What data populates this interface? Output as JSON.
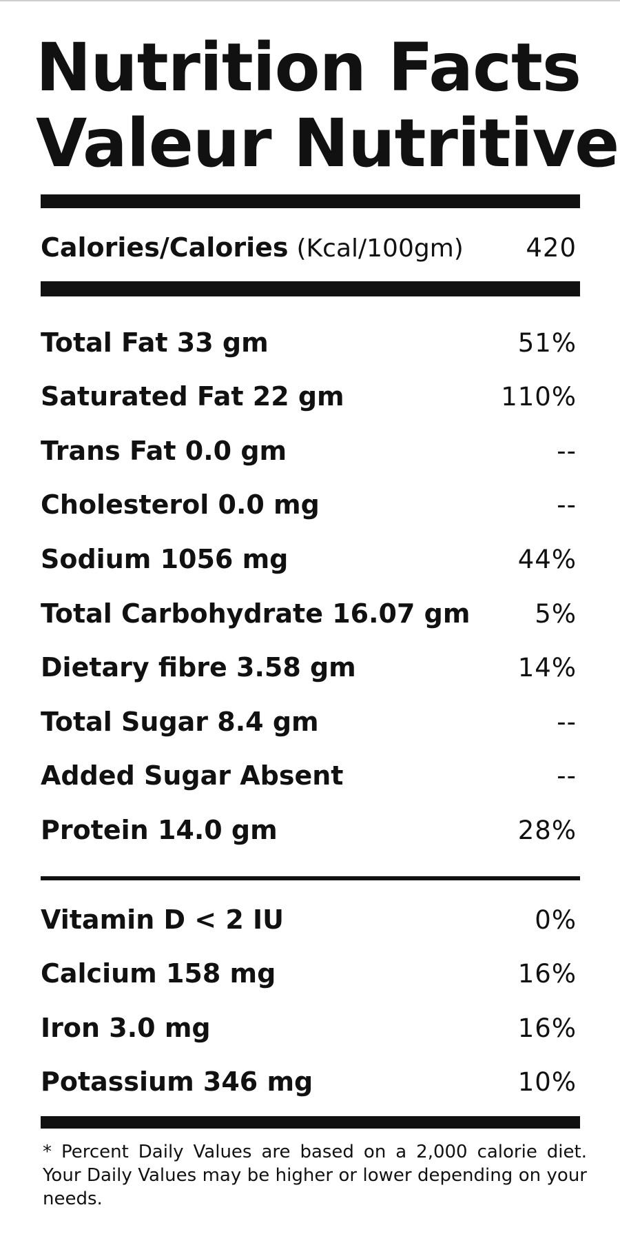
{
  "title": {
    "english": "Nutrition Facts",
    "french": "Valeur Nutritive"
  },
  "calories": {
    "label": "Calories/Calories",
    "unit": "(Kcal/100gm)",
    "value": "420"
  },
  "nutrients": [
    {
      "label": "Total Fat 33 gm",
      "daily_value": "51%"
    },
    {
      "label": "Saturated Fat 22 gm",
      "daily_value": "110%"
    },
    {
      "label": "Trans Fat 0.0 gm",
      "daily_value": "--"
    },
    {
      "label": "Cholesterol 0.0 mg",
      "daily_value": "--"
    },
    {
      "label": "Sodium 1056 mg",
      "daily_value": "44%"
    },
    {
      "label": "Total Carbohydrate 16.07 gm",
      "daily_value": "5%"
    },
    {
      "label": "Dietary fibre 3.58 gm",
      "daily_value": "14%"
    },
    {
      "label": "Total Sugar 8.4 gm",
      "daily_value": "--"
    },
    {
      "label": "Added Sugar Absent",
      "daily_value": "--"
    },
    {
      "label": "Protein 14.0 gm",
      "daily_value": "28%"
    }
  ],
  "vitamins_minerals": [
    {
      "label": "Vitamin D < 2 IU",
      "daily_value": "0%"
    },
    {
      "label": "Calcium 158 mg",
      "daily_value": "16%"
    },
    {
      "label": "Iron 3.0 mg",
      "daily_value": "16%"
    },
    {
      "label": "Potassium 346 mg",
      "daily_value": "10%"
    }
  ],
  "footnote": "* Percent Daily Values are based on a 2,000 calorie diet. Your Daily Values may be higher or lower depending on your needs."
}
